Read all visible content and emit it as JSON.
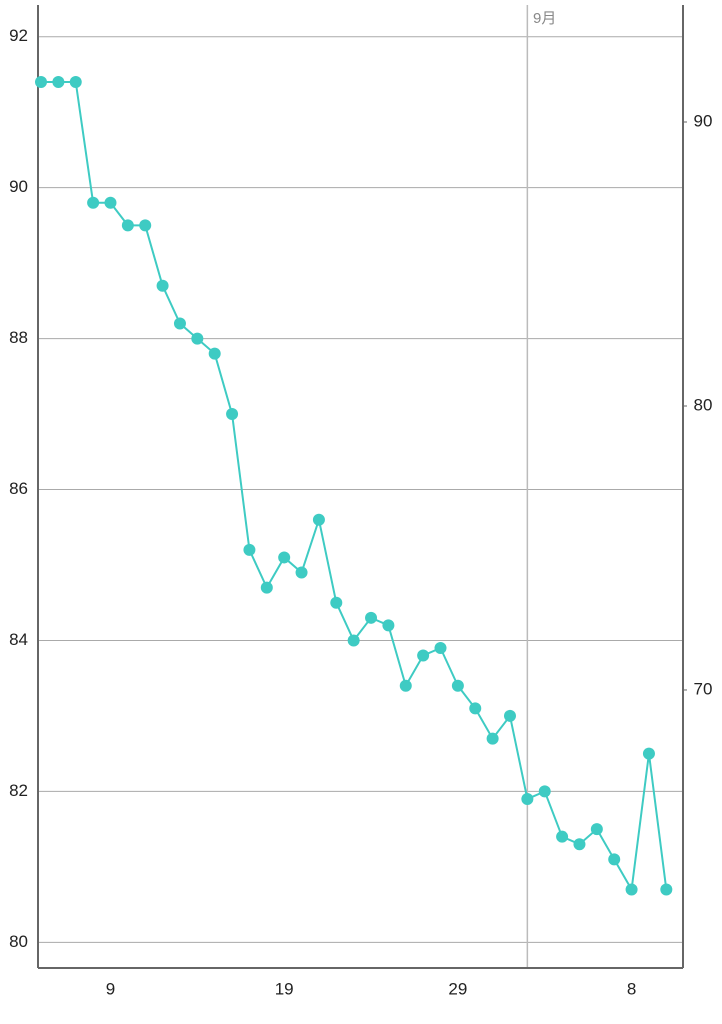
{
  "chart_data": {
    "type": "line",
    "categories": [
      null,
      null,
      null,
      null,
      "9",
      null,
      null,
      null,
      null,
      null,
      null,
      null,
      null,
      null,
      "19",
      null,
      null,
      null,
      null,
      null,
      null,
      null,
      null,
      null,
      "29",
      null,
      null,
      null,
      null,
      null,
      null,
      null,
      null,
      null,
      "8",
      null,
      null
    ],
    "series": [
      {
        "color": "#3ecbc3",
        "values": [
          91.4,
          91.4,
          91.4,
          89.8,
          89.8,
          89.5,
          89.5,
          88.7,
          88.2,
          88.0,
          87.8,
          87.0,
          85.2,
          84.7,
          85.1,
          84.9,
          85.6,
          84.5,
          84.0,
          84.3,
          84.2,
          83.4,
          83.8,
          83.9,
          83.4,
          83.1,
          82.7,
          83.0,
          81.9,
          82.0,
          81.4,
          81.3,
          81.5,
          81.1,
          80.7,
          82.5,
          80.7
        ]
      }
    ],
    "ylim": [
      79.66,
      92.42
    ],
    "yticks": [
      80,
      82,
      84,
      86,
      88,
      90,
      92
    ],
    "y2lim": [
      60.21,
      94.12
    ],
    "y2ticks": [
      70,
      80,
      90
    ],
    "annotation": "9月",
    "grid": true
  }
}
